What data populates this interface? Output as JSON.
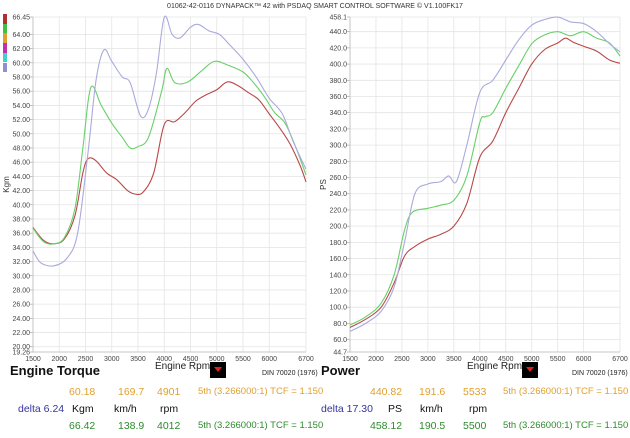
{
  "header": {
    "title": "01062-42-0116 DYNAPACK™ 42 with PSDAQ SMART CONTROL SOFTWARE © V1.100FK17"
  },
  "legend_strip_colors": [
    "#b03030",
    "#40c040",
    "#e0a030",
    "#c030b0",
    "#40d0d0",
    "#9090d0"
  ],
  "chart_data": [
    {
      "type": "line",
      "title": "Engine Torque",
      "xlabel": "Engine Rpm",
      "ylabel": "Kgm",
      "standard": "DIN 70020 (1976)",
      "xlim": [
        1500,
        6700
      ],
      "ylim": [
        19.26,
        66.45
      ],
      "x_ticks": [
        1500,
        2000,
        2500,
        3000,
        3500,
        4000,
        4500,
        5000,
        5500,
        6000,
        6700
      ],
      "y_ticks": [
        "66.45",
        "64.00",
        "62.00",
        "60.00",
        "58.00",
        "56.00",
        "54.00",
        "52.00",
        "50.00",
        "48.00",
        "46.00",
        "44.00",
        "42.00",
        "40.00",
        "38.00",
        "36.00",
        "34.00",
        "32.00",
        "30.00",
        "28.00",
        "26.00",
        "24.00",
        "22.00",
        "20.00",
        "19.26"
      ],
      "series": [
        {
          "name": "run-red",
          "color": "#b84848",
          "points": [
            [
              1500,
              36.8
            ],
            [
              1700,
              35.0
            ],
            [
              1900,
              34.5
            ],
            [
              2100,
              35.2
            ],
            [
              2300,
              38.5
            ],
            [
              2450,
              44.5
            ],
            [
              2550,
              46.5
            ],
            [
              2700,
              46.2
            ],
            [
              2900,
              44.5
            ],
            [
              3100,
              43.5
            ],
            [
              3300,
              42.0
            ],
            [
              3450,
              41.5
            ],
            [
              3600,
              41.8
            ],
            [
              3800,
              44.5
            ],
            [
              4000,
              51.3
            ],
            [
              4200,
              51.7
            ],
            [
              4400,
              53.0
            ],
            [
              4600,
              54.6
            ],
            [
              4800,
              55.5
            ],
            [
              5000,
              56.2
            ],
            [
              5200,
              57.3
            ],
            [
              5400,
              56.8
            ],
            [
              5600,
              55.8
            ],
            [
              5800,
              54.8
            ],
            [
              6000,
              52.8
            ],
            [
              6200,
              50.8
            ],
            [
              6400,
              48.5
            ],
            [
              6600,
              45.3
            ],
            [
              6700,
              43.2
            ]
          ]
        },
        {
          "name": "run-green",
          "color": "#68d068",
          "points": [
            [
              1500,
              36.7
            ],
            [
              1700,
              34.8
            ],
            [
              1900,
              34.5
            ],
            [
              2100,
              35.4
            ],
            [
              2300,
              39.5
            ],
            [
              2450,
              48.0
            ],
            [
              2600,
              56.5
            ],
            [
              2800,
              54.0
            ],
            [
              3000,
              51.5
            ],
            [
              3200,
              49.5
            ],
            [
              3350,
              48.0
            ],
            [
              3500,
              48.2
            ],
            [
              3700,
              49.5
            ],
            [
              3950,
              56.0
            ],
            [
              4050,
              59.2
            ],
            [
              4200,
              57.2
            ],
            [
              4450,
              57.3
            ],
            [
              4700,
              58.8
            ],
            [
              4950,
              60.2
            ],
            [
              5200,
              59.7
            ],
            [
              5500,
              58.7
            ],
            [
              5700,
              57.2
            ],
            [
              5900,
              55.3
            ],
            [
              6100,
              53.0
            ],
            [
              6300,
              51.5
            ],
            [
              6500,
              48.2
            ],
            [
              6700,
              44.2
            ]
          ]
        },
        {
          "name": "run-lavender",
          "color": "#aaaadc",
          "points": [
            [
              1500,
              33.5
            ],
            [
              1650,
              31.8
            ],
            [
              1900,
              31.4
            ],
            [
              2150,
              32.5
            ],
            [
              2350,
              36.0
            ],
            [
              2550,
              47.5
            ],
            [
              2700,
              57.5
            ],
            [
              2850,
              61.8
            ],
            [
              3000,
              60.2
            ],
            [
              3200,
              58.0
            ],
            [
              3350,
              57.2
            ],
            [
              3550,
              52.5
            ],
            [
              3700,
              53.5
            ],
            [
              3850,
              58.5
            ],
            [
              4000,
              66.4
            ],
            [
              4150,
              64.0
            ],
            [
              4300,
              63.5
            ],
            [
              4500,
              65.0
            ],
            [
              4650,
              65.4
            ],
            [
              4850,
              64.5
            ],
            [
              5050,
              64.0
            ],
            [
              5250,
              62.5
            ],
            [
              5500,
              60.5
            ],
            [
              5750,
              58.0
            ],
            [
              6000,
              55.0
            ],
            [
              6250,
              52.8
            ],
            [
              6450,
              49.0
            ],
            [
              6700,
              45.0
            ]
          ]
        }
      ]
    },
    {
      "type": "line",
      "title": "Power",
      "xlabel": "Engine Rpm",
      "ylabel": "PS",
      "standard": "DIN 70020 (1976)",
      "xlim": [
        1500,
        6700
      ],
      "ylim": [
        44.7,
        458.1
      ],
      "x_ticks": [
        1500,
        2000,
        2500,
        3000,
        3500,
        4000,
        4500,
        5000,
        5500,
        6000,
        6700
      ],
      "y_ticks": [
        "458.1",
        "440.0",
        "420.0",
        "400.0",
        "380.0",
        "360.0",
        "340.0",
        "320.0",
        "300.0",
        "280.0",
        "260.0",
        "240.0",
        "220.0",
        "200.0",
        "180.0",
        "160.0",
        "140.0",
        "120.0",
        "100.0",
        "80.0",
        "60.0",
        "44.7"
      ],
      "series": [
        {
          "name": "run-red",
          "color": "#b84848",
          "points": [
            [
              1500,
              75
            ],
            [
              1800,
              85
            ],
            [
              2100,
              100
            ],
            [
              2350,
              130
            ],
            [
              2550,
              163
            ],
            [
              2750,
              175
            ],
            [
              3000,
              184
            ],
            [
              3250,
              190
            ],
            [
              3500,
              200
            ],
            [
              3750,
              228
            ],
            [
              4000,
              285
            ],
            [
              4250,
              305
            ],
            [
              4500,
              340
            ],
            [
              4750,
              370
            ],
            [
              5000,
              400
            ],
            [
              5250,
              418
            ],
            [
              5500,
              426
            ],
            [
              5650,
              432
            ],
            [
              5800,
              427
            ],
            [
              6000,
              422
            ],
            [
              6250,
              416
            ],
            [
              6500,
              405
            ],
            [
              6700,
              401
            ]
          ]
        },
        {
          "name": "run-green",
          "color": "#68d068",
          "points": [
            [
              1500,
              78
            ],
            [
              1800,
              88
            ],
            [
              2100,
              105
            ],
            [
              2350,
              140
            ],
            [
              2550,
              195
            ],
            [
              2700,
              217
            ],
            [
              3000,
              222
            ],
            [
              3250,
              226
            ],
            [
              3500,
              232
            ],
            [
              3750,
              262
            ],
            [
              4000,
              328
            ],
            [
              4100,
              335
            ],
            [
              4250,
              340
            ],
            [
              4500,
              370
            ],
            [
              4750,
              398
            ],
            [
              5000,
              425
            ],
            [
              5250,
              436
            ],
            [
              5500,
              440
            ],
            [
              5750,
              435
            ],
            [
              6000,
              440
            ],
            [
              6250,
              432
            ],
            [
              6500,
              426
            ],
            [
              6700,
              410
            ]
          ]
        },
        {
          "name": "run-lavender",
          "color": "#aaaadc",
          "points": [
            [
              1500,
              70
            ],
            [
              1800,
              80
            ],
            [
              2100,
              95
            ],
            [
              2350,
              125
            ],
            [
              2550,
              180
            ],
            [
              2750,
              240
            ],
            [
              3000,
              252
            ],
            [
              3250,
              255
            ],
            [
              3400,
              262
            ],
            [
              3550,
              255
            ],
            [
              3750,
              300
            ],
            [
              4000,
              365
            ],
            [
              4250,
              380
            ],
            [
              4500,
              405
            ],
            [
              4750,
              430
            ],
            [
              5000,
              448
            ],
            [
              5250,
              455
            ],
            [
              5500,
              458
            ],
            [
              5750,
              452
            ],
            [
              6000,
              450
            ],
            [
              6250,
              440
            ],
            [
              6500,
              425
            ],
            [
              6700,
              415
            ]
          ]
        }
      ]
    }
  ],
  "torque_panel": {
    "title": "Engine Torque",
    "xaxis_label": "Engine Rpm",
    "standard": "DIN 70020 (1976)",
    "row1": {
      "value": "60.18",
      "speed": "169.7",
      "rpm": "4901",
      "gear": "5th (3.266000:1) TCF = 1.150"
    },
    "row2": {
      "delta": "delta 6.24",
      "unit": "Kgm",
      "speed_unit": "km/h",
      "rpm_unit": "rpm"
    },
    "row3": {
      "value": "66.42",
      "speed": "138.9",
      "rpm": "4012",
      "gear": "5th (3.266000:1) TCF = 1.150"
    }
  },
  "power_panel": {
    "title": "Power",
    "xaxis_label": "Engine Rpm",
    "standard": "DIN 70020 (1976)",
    "row1": {
      "value": "440.82",
      "speed": "191.6",
      "rpm": "5533",
      "gear": "5th (3.266000:1) TCF = 1.150"
    },
    "row2": {
      "delta": "delta 17.30",
      "unit": "PS",
      "speed_unit": "km/h",
      "rpm_unit": "rpm"
    },
    "row3": {
      "value": "458.12",
      "speed": "190.5",
      "rpm": "5500",
      "gear": "5th (3.266000:1) TCF = 1.150"
    }
  }
}
